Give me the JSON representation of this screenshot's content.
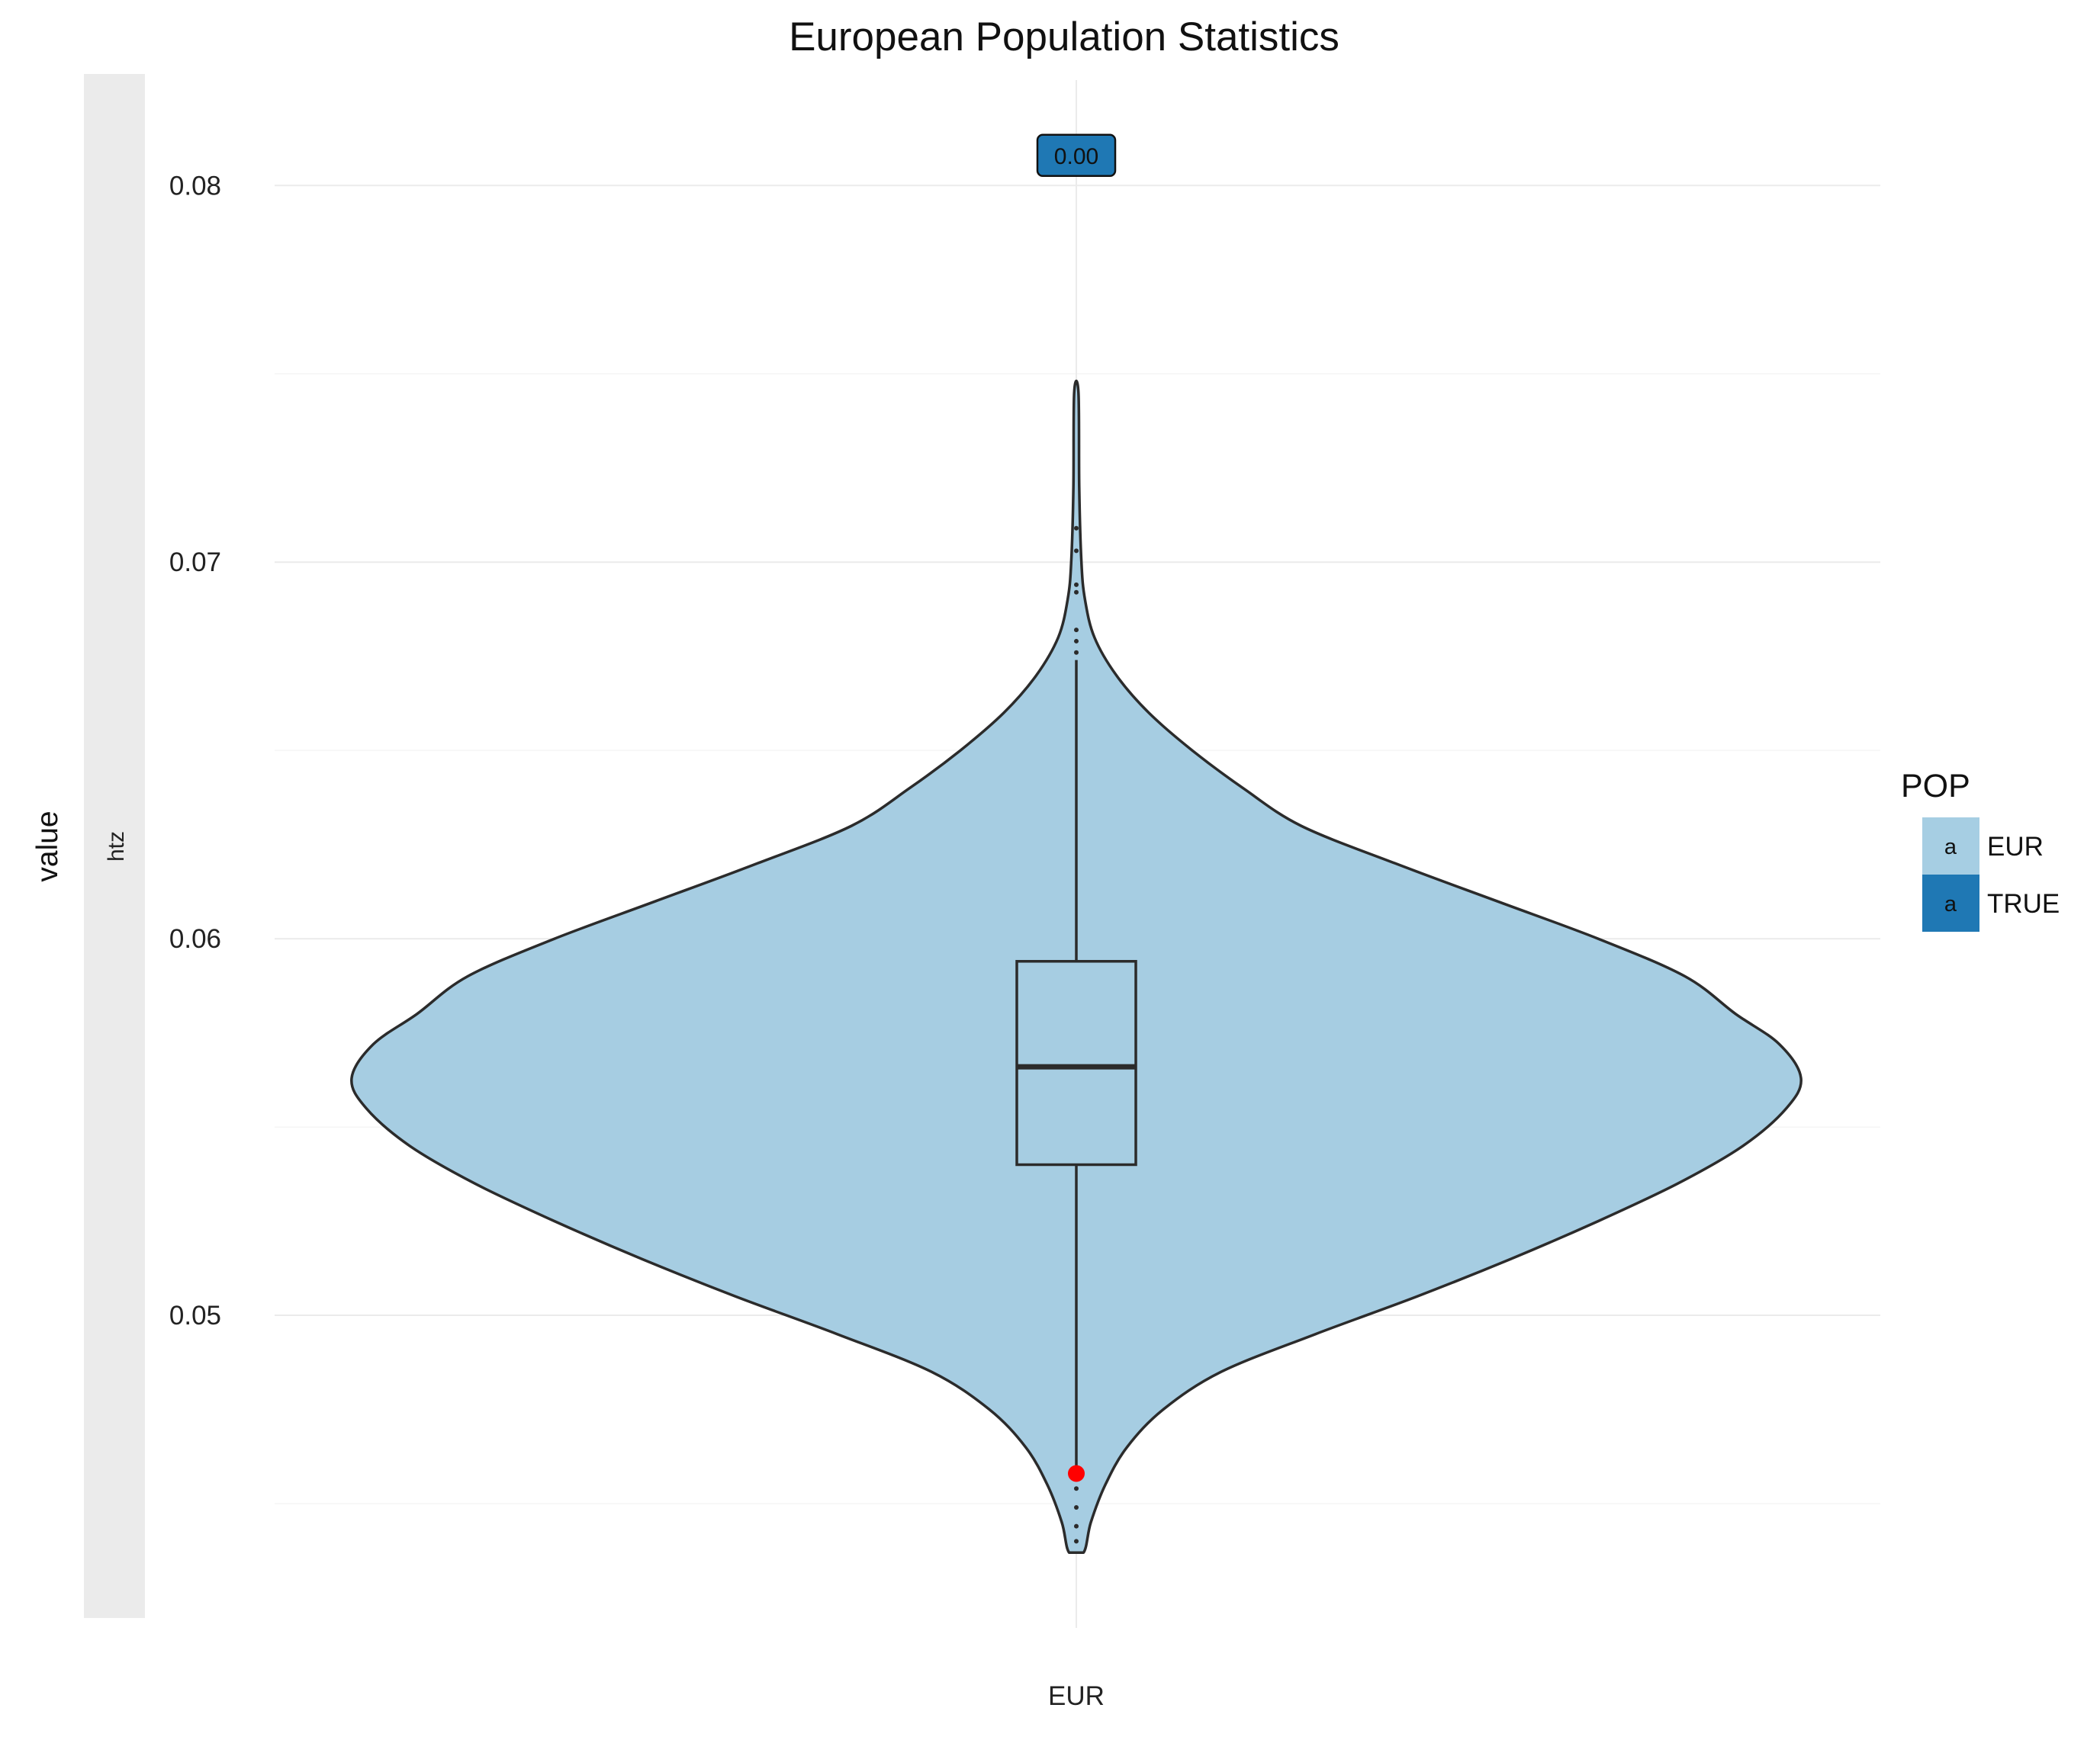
{
  "chart_data": {
    "type": "violin",
    "title": "European Population Statistics",
    "xlabel": "",
    "ylabel": "value",
    "facet_strip": "htz",
    "categories": [
      "EUR"
    ],
    "ylim": [
      0.0417,
      0.0828
    ],
    "y_ticks": [
      0.05,
      0.06,
      0.07,
      0.08
    ],
    "y_tick_labels": [
      "0.05",
      "0.06",
      "0.07",
      "0.08"
    ],
    "grid": true,
    "violin": {
      "category": "EUR",
      "fill": "#a6cde2",
      "outline": "#2b2b2b",
      "density_profile": [
        {
          "y": 0.0437,
          "w": 0.01
        },
        {
          "y": 0.0445,
          "w": 0.02
        },
        {
          "y": 0.0455,
          "w": 0.04
        },
        {
          "y": 0.0465,
          "w": 0.07
        },
        {
          "y": 0.0475,
          "w": 0.12
        },
        {
          "y": 0.0485,
          "w": 0.2
        },
        {
          "y": 0.0495,
          "w": 0.33
        },
        {
          "y": 0.0505,
          "w": 0.47
        },
        {
          "y": 0.0515,
          "w": 0.6
        },
        {
          "y": 0.0525,
          "w": 0.72
        },
        {
          "y": 0.0535,
          "w": 0.83
        },
        {
          "y": 0.0545,
          "w": 0.92
        },
        {
          "y": 0.0555,
          "w": 0.98
        },
        {
          "y": 0.0563,
          "w": 1.0
        },
        {
          "y": 0.0572,
          "w": 0.97
        },
        {
          "y": 0.058,
          "w": 0.91
        },
        {
          "y": 0.059,
          "w": 0.84
        },
        {
          "y": 0.06,
          "w": 0.72
        },
        {
          "y": 0.061,
          "w": 0.58
        },
        {
          "y": 0.062,
          "w": 0.44
        },
        {
          "y": 0.063,
          "w": 0.31
        },
        {
          "y": 0.064,
          "w": 0.23
        },
        {
          "y": 0.065,
          "w": 0.16
        },
        {
          "y": 0.066,
          "w": 0.1
        },
        {
          "y": 0.067,
          "w": 0.055
        },
        {
          "y": 0.068,
          "w": 0.025
        },
        {
          "y": 0.069,
          "w": 0.012
        },
        {
          "y": 0.07,
          "w": 0.007
        },
        {
          "y": 0.072,
          "w": 0.004
        },
        {
          "y": 0.0745,
          "w": 0.003
        }
      ]
    },
    "boxplot": {
      "q1": 0.054,
      "median": 0.0566,
      "q3": 0.0594,
      "whisker_low": 0.0458,
      "whisker_high": 0.0674,
      "outliers": [
        0.0454,
        0.0449,
        0.0444,
        0.044,
        0.0676,
        0.0679,
        0.0682,
        0.0692,
        0.0694,
        0.0703,
        0.0709
      ]
    },
    "highlight_point": {
      "y": 0.0458,
      "color": "#ff0000"
    },
    "annotation": {
      "text": "0.00",
      "y": 0.0808,
      "fill": "#1f78b4"
    },
    "legend": {
      "title": "POP",
      "position": "right",
      "entries": [
        {
          "key_text": "a",
          "label": "EUR",
          "color": "#a6cee3"
        },
        {
          "key_text": "a",
          "label": "TRUE",
          "color": "#1f78b4"
        }
      ]
    }
  }
}
